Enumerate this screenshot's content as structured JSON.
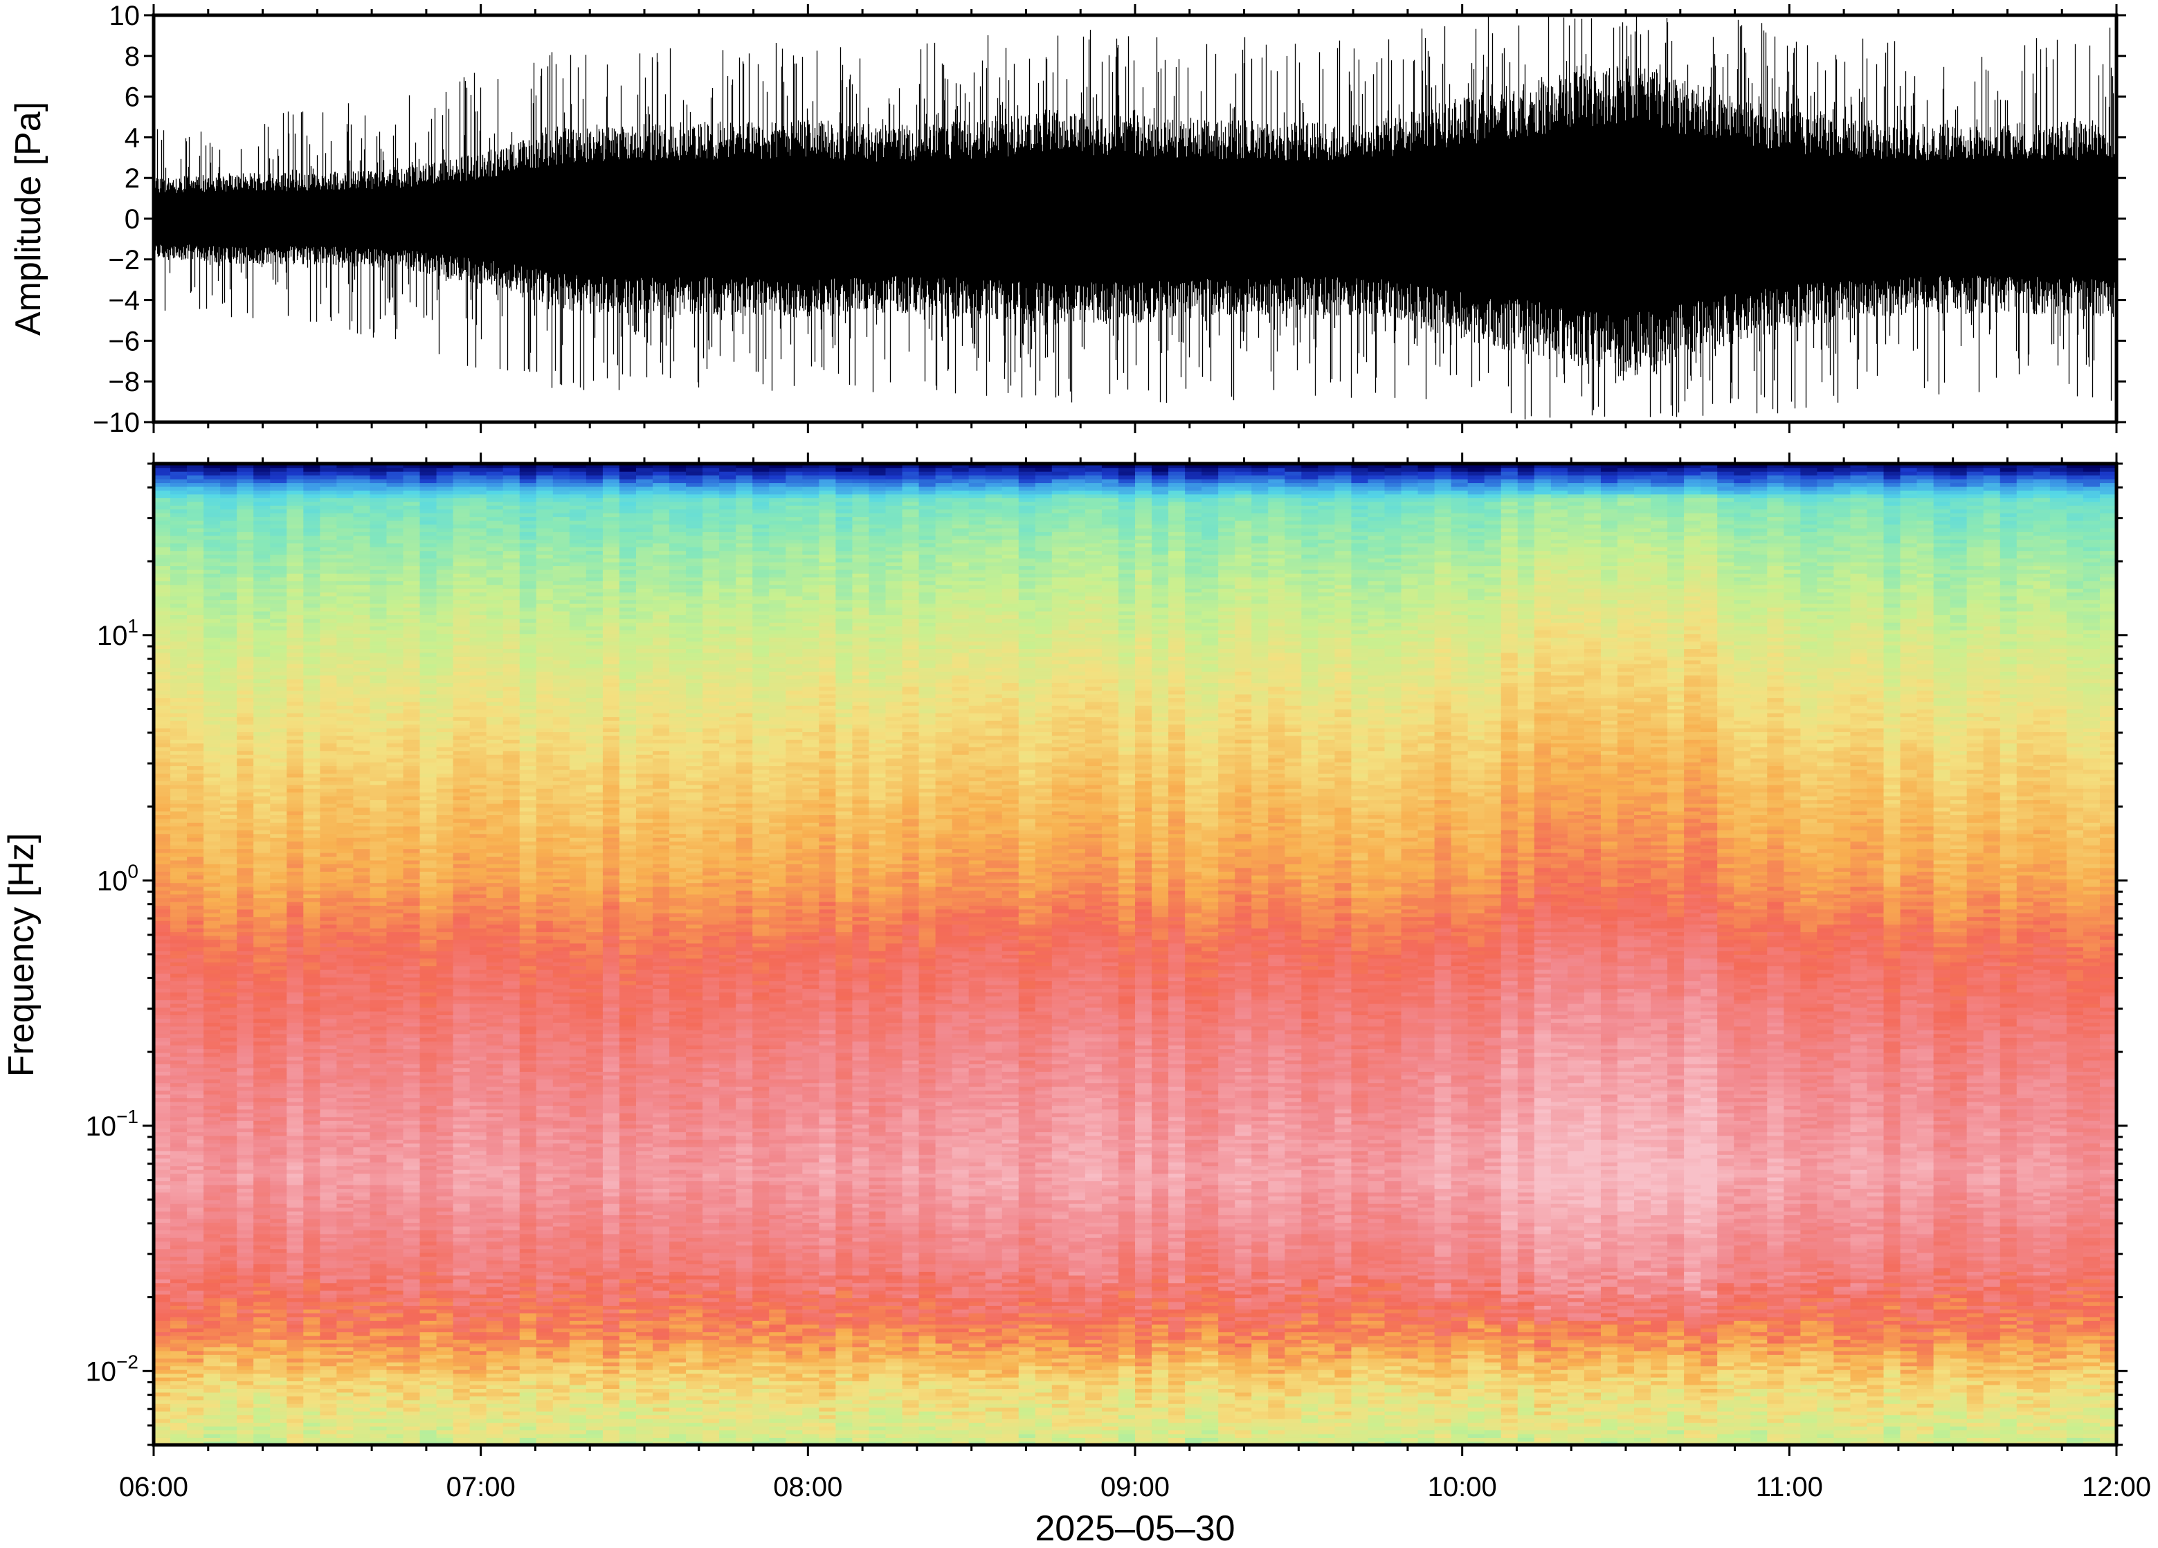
{
  "chart_data": [
    {
      "type": "line",
      "panel": "waveform",
      "ylabel": "Amplitude [Pa]",
      "ylim": [
        -10,
        10
      ],
      "yticks": [
        -10,
        -8,
        -6,
        -4,
        -2,
        0,
        2,
        4,
        6,
        8,
        10
      ],
      "ytick_labels": [
        "−10",
        "−8",
        "−6",
        "−4",
        "−2",
        "0",
        "2",
        "4",
        "6",
        "8",
        "10"
      ],
      "xlim": [
        "06:00",
        "12:00"
      ],
      "grid": false,
      "color": "#000000",
      "envelope": {
        "times": [
          "06:00",
          "06:15",
          "06:30",
          "06:45",
          "07:00",
          "07:15",
          "07:30",
          "07:45",
          "08:00",
          "08:15",
          "08:30",
          "08:45",
          "09:00",
          "09:15",
          "09:30",
          "09:45",
          "10:00",
          "10:15",
          "10:30",
          "10:45",
          "11:00",
          "11:15",
          "11:30",
          "11:45",
          "12:00"
        ],
        "dense_amplitude": [
          1.6,
          1.8,
          1.8,
          2.0,
          2.6,
          3.6,
          3.8,
          3.8,
          3.9,
          3.7,
          3.9,
          4.2,
          4.1,
          3.9,
          3.8,
          3.9,
          4.8,
          5.5,
          6.3,
          5.2,
          4.3,
          3.9,
          3.7,
          3.8,
          3.9
        ],
        "peak_amplitude": [
          4.5,
          5.0,
          5.5,
          6.0,
          7.5,
          8.5,
          8.5,
          8.5,
          9.0,
          8.5,
          9.0,
          9.5,
          9.2,
          9.0,
          8.8,
          9.0,
          10.0,
          10.0,
          10.0,
          10.0,
          9.5,
          9.0,
          8.8,
          9.0,
          9.5
        ]
      }
    },
    {
      "type": "heatmap",
      "panel": "spectrogram",
      "ylabel": "Frequency [Hz]",
      "xlabel": "2025–05–30",
      "yscale": "log",
      "ylim": [
        0.005,
        50
      ],
      "yticks": [
        {
          "value": 0.01,
          "base": "10",
          "exp": "−2"
        },
        {
          "value": 0.1,
          "base": "10",
          "exp": "−1"
        },
        {
          "value": 1,
          "base": "10",
          "exp": "0"
        },
        {
          "value": 10,
          "base": "10",
          "exp": "1"
        }
      ],
      "xlim": [
        "06:00",
        "12:00"
      ],
      "xticks": [
        "06:00",
        "07:00",
        "08:00",
        "09:00",
        "10:00",
        "11:00",
        "12:00"
      ],
      "colormap": [
        "#000060",
        "#1a3acb",
        "#3fa0e8",
        "#55d8e6",
        "#88e8b8",
        "#c8f090",
        "#f4e080",
        "#f8b050",
        "#f46a58",
        "#f28a90",
        "#f8c0c8"
      ],
      "grid": false
    }
  ]
}
